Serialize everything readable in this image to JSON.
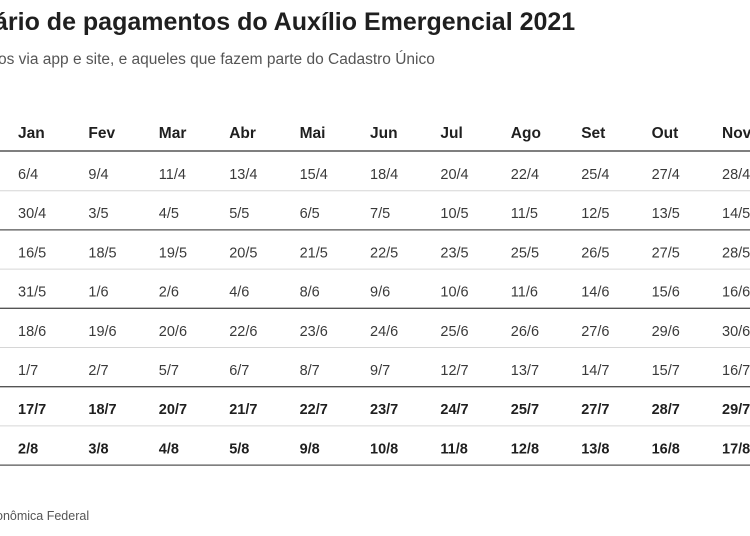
{
  "title": "ário de pagamentos do Auxílio Emergencial 2021",
  "subtitle": "os via app e site, e aqueles que fazem parte do Cadastro Único",
  "source": "onômica Federal",
  "colors": {
    "rule": "#555555",
    "rule_light": "#d6d6d6",
    "text": "#2b2b2b"
  },
  "chart_data": {
    "type": "table",
    "columns": [
      "Jan",
      "Fev",
      "Mar",
      "Abr",
      "Mai",
      "Jun",
      "Jul",
      "Ago",
      "Set",
      "Out",
      "Nov"
    ],
    "rows": [
      [
        "6/4",
        "9/4",
        "11/4",
        "13/4",
        "15/4",
        "18/4",
        "20/4",
        "22/4",
        "25/4",
        "27/4",
        "28/4"
      ],
      [
        "30/4",
        "3/5",
        "4/5",
        "5/5",
        "6/5",
        "7/5",
        "10/5",
        "11/5",
        "12/5",
        "13/5",
        "14/5"
      ],
      [
        "16/5",
        "18/5",
        "19/5",
        "20/5",
        "21/5",
        "22/5",
        "23/5",
        "25/5",
        "26/5",
        "27/5",
        "28/5"
      ],
      [
        "31/5",
        "1/6",
        "2/6",
        "4/6",
        "8/6",
        "9/6",
        "10/6",
        "11/6",
        "14/6",
        "15/6",
        "16/6"
      ],
      [
        "18/6",
        "19/6",
        "20/6",
        "22/6",
        "23/6",
        "24/6",
        "25/6",
        "26/6",
        "27/6",
        "29/6",
        "30/6"
      ],
      [
        "1/7",
        "2/7",
        "5/7",
        "6/7",
        "8/7",
        "9/7",
        "12/7",
        "13/7",
        "14/7",
        "15/7",
        "16/7"
      ],
      [
        "17/7",
        "18/7",
        "20/7",
        "21/7",
        "22/7",
        "23/7",
        "24/7",
        "25/7",
        "27/7",
        "28/7",
        "29/7"
      ],
      [
        "2/8",
        "3/8",
        "4/8",
        "5/8",
        "9/8",
        "10/8",
        "11/8",
        "12/8",
        "13/8",
        "16/8",
        "17/8"
      ]
    ],
    "bold_rows": [
      6,
      7
    ]
  }
}
